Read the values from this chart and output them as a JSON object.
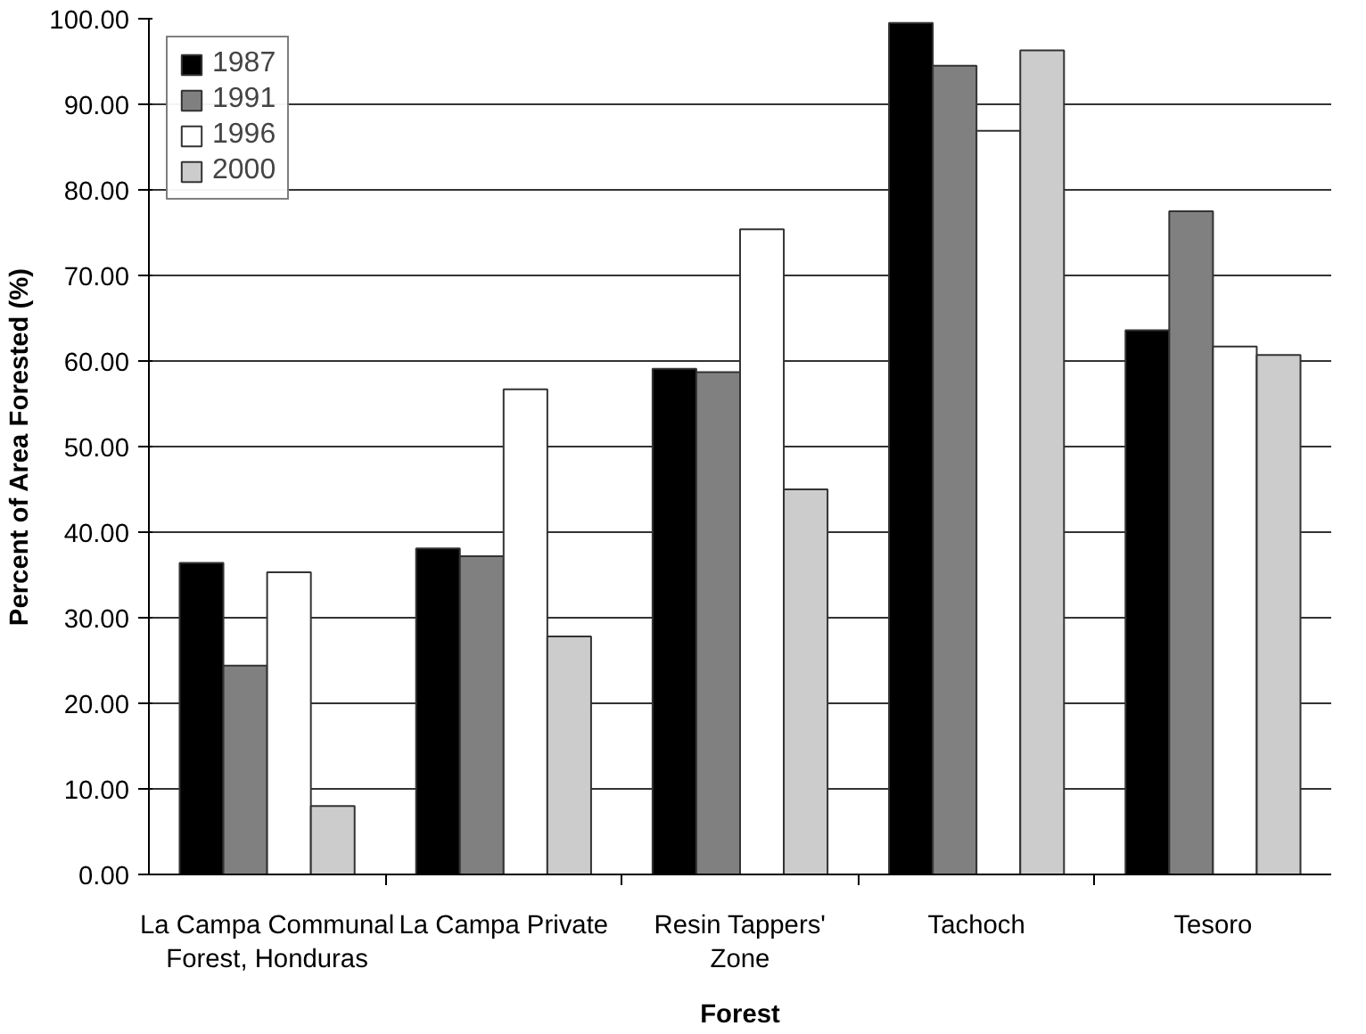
{
  "chart_data": {
    "type": "bar",
    "xlabel": "Forest",
    "ylabel": "Percent of Area Forested (%)",
    "categories": [
      "La Campa Communal Forest, Honduras",
      "La Campa Private",
      "Resin Tappers' Zone",
      "Tachoch",
      "Tesoro"
    ],
    "series": [
      {
        "name": "1987",
        "color": "#000000",
        "values": [
          36.4,
          38.1,
          59.1,
          99.5,
          63.6
        ]
      },
      {
        "name": "1991",
        "color": "#808080",
        "values": [
          24.4,
          37.2,
          58.7,
          94.5,
          77.5
        ]
      },
      {
        "name": "1996",
        "color": "#ffffff",
        "values": [
          35.3,
          56.7,
          75.4,
          86.9,
          61.7
        ]
      },
      {
        "name": "2000",
        "color": "#cccccc",
        "values": [
          8.0,
          27.8,
          45.0,
          96.3,
          60.7
        ]
      }
    ],
    "ylim": [
      0,
      100
    ],
    "yticks": [
      {
        "value": 0,
        "label": "0.00"
      },
      {
        "value": 10,
        "label": "10.00"
      },
      {
        "value": 20,
        "label": "20.00"
      },
      {
        "value": 30,
        "label": "30.00"
      },
      {
        "value": 40,
        "label": "40.00"
      },
      {
        "value": 50,
        "label": "50.00"
      },
      {
        "value": 60,
        "label": "60.00"
      },
      {
        "value": 70,
        "label": "70.00"
      },
      {
        "value": 80,
        "label": "80.00"
      },
      {
        "value": 90,
        "label": "90.00"
      },
      {
        "value": 100,
        "label": "100.00"
      }
    ],
    "grid": "y",
    "legend": "top left"
  }
}
